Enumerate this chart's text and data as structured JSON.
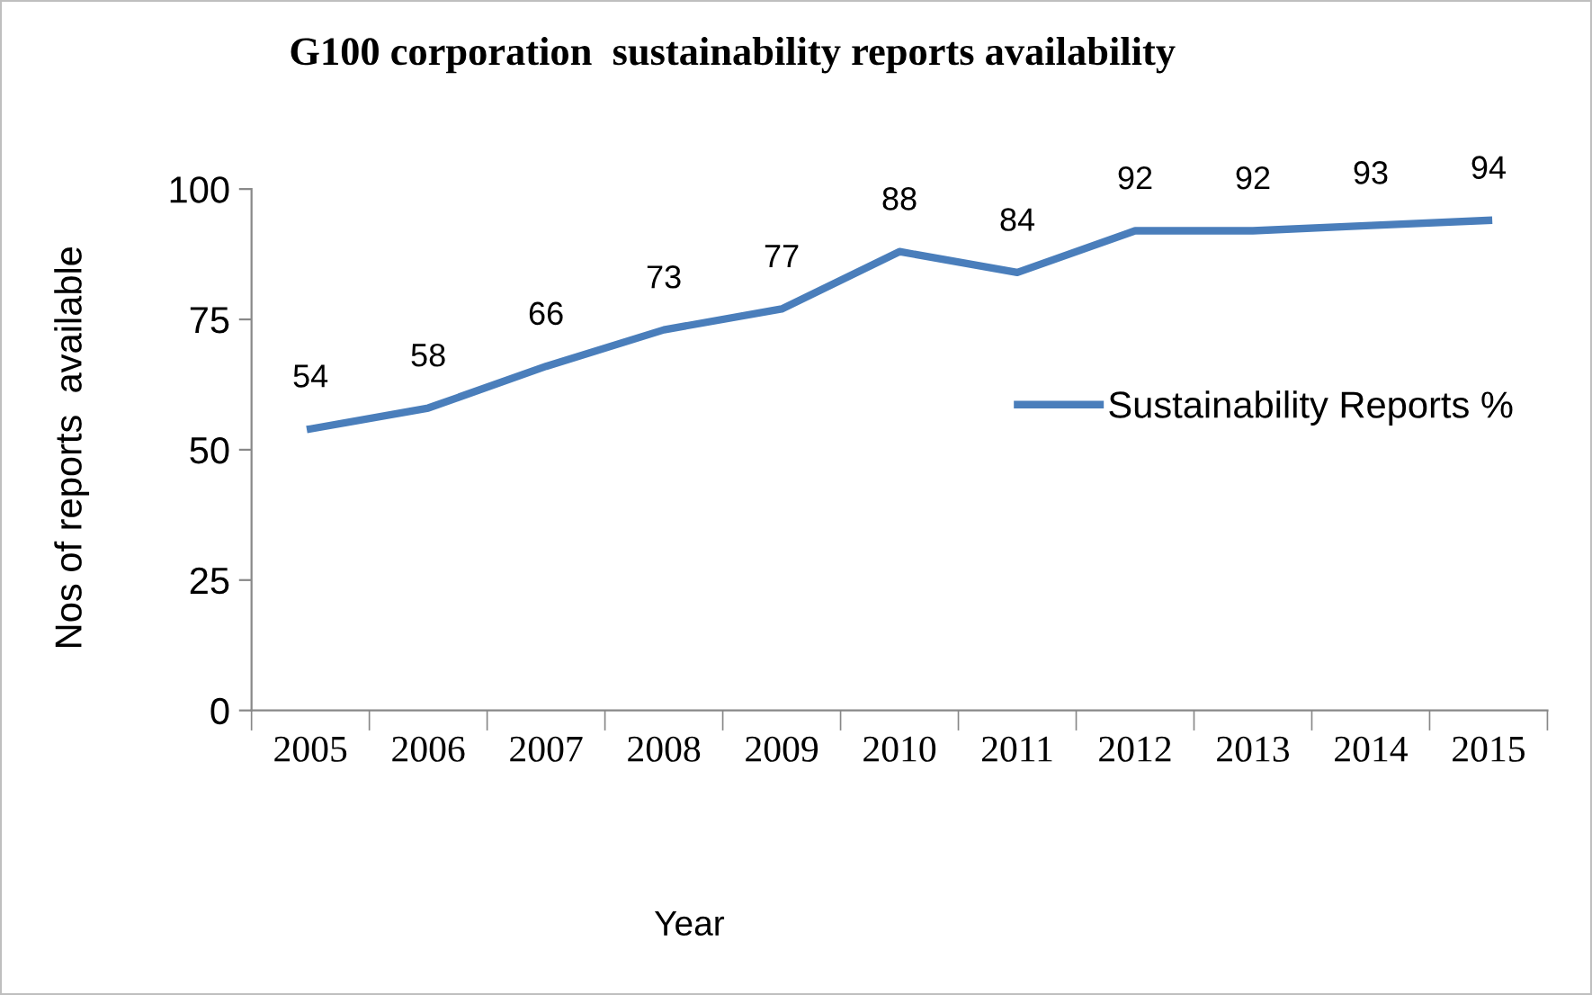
{
  "chart_data": {
    "type": "line",
    "title": "G100 corporation  sustainability reports availability",
    "xlabel": "Year",
    "ylabel": "Nos of reports  available",
    "categories": [
      "2005",
      "2006",
      "2007",
      "2008",
      "2009",
      "2010",
      "2011",
      "2012",
      "2013",
      "2014",
      "2015"
    ],
    "series": [
      {
        "name": "Sustainability Reports %",
        "color": "#4a7ebb",
        "values": [
          54,
          58,
          66,
          73,
          77,
          88,
          84,
          92,
          92,
          93,
          94
        ]
      }
    ],
    "ylim": [
      0,
      100
    ],
    "yticks": [
      0,
      25,
      50,
      75,
      100
    ],
    "grid": false,
    "legend": "right",
    "data_labels": true,
    "marker": "none",
    "line_style": "solid"
  }
}
